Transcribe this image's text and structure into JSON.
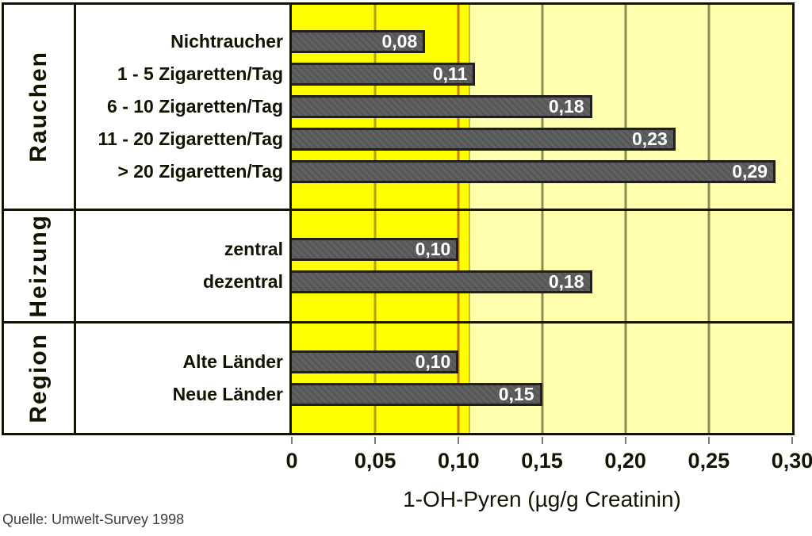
{
  "chart_data": {
    "type": "bar",
    "orientation": "horizontal",
    "xlabel": "1-OH-Pyren (µg/g Creatinin)",
    "xlim": [
      0,
      0.3
    ],
    "x_ticks": [
      0,
      0.05,
      0.1,
      0.15,
      0.2,
      0.25,
      0.3
    ],
    "x_tick_labels": [
      "0",
      "0,05",
      "0,10",
      "0,15",
      "0,20",
      "0,25",
      "0,30"
    ],
    "grid": true,
    "gridlines": [
      {
        "x": 0.05,
        "color": "#B89C00"
      },
      {
        "x": 0.1,
        "color": "#CC7A14"
      },
      {
        "x": 0.15,
        "color": "#8C8C50"
      },
      {
        "x": 0.2,
        "color": "#8C8C50"
      },
      {
        "x": 0.25,
        "color": "#8C8C50"
      }
    ],
    "highlight_region": {
      "from": 0,
      "to": 0.106,
      "color": "#FFFF00"
    },
    "groups": [
      {
        "label": "Rauchen",
        "items": [
          {
            "label": "Nichtraucher",
            "value": 0.08,
            "value_label": "0,08"
          },
          {
            "label": "1 - 5 Zigaretten/Tag",
            "value": 0.11,
            "value_label": "0,11"
          },
          {
            "label": "6 - 10 Zigaretten/Tag",
            "value": 0.18,
            "value_label": "0,18"
          },
          {
            "label": "11 - 20 Zigaretten/Tag",
            "value": 0.23,
            "value_label": "0,23"
          },
          {
            "label": "> 20 Zigaretten/Tag",
            "value": 0.29,
            "value_label": "0,29"
          }
        ]
      },
      {
        "label": "Heizung",
        "items": [
          {
            "label": "zentral",
            "value": 0.1,
            "value_label": "0,10"
          },
          {
            "label": "dezentral",
            "value": 0.18,
            "value_label": "0,18"
          }
        ]
      },
      {
        "label": "Region",
        "items": [
          {
            "label": "Alte Länder",
            "value": 0.1,
            "value_label": "0,10"
          },
          {
            "label": "Neue Länder",
            "value": 0.15,
            "value_label": "0,15"
          }
        ]
      }
    ],
    "source": "Quelle: Umwelt-Survey 1998"
  },
  "colors": {
    "plot_bg_bright": "#FFFF00",
    "plot_bg_pale": "#FFFFAD",
    "region_edge": "#BCBC5A",
    "bar_fill": "#5C5C5C",
    "bar_border": "#1F1F1F",
    "frame": "#131300",
    "tick": "#7A7A7A",
    "text": "#131300",
    "value_text": "#FFFFFF",
    "source_text": "#3C3C3C"
  }
}
